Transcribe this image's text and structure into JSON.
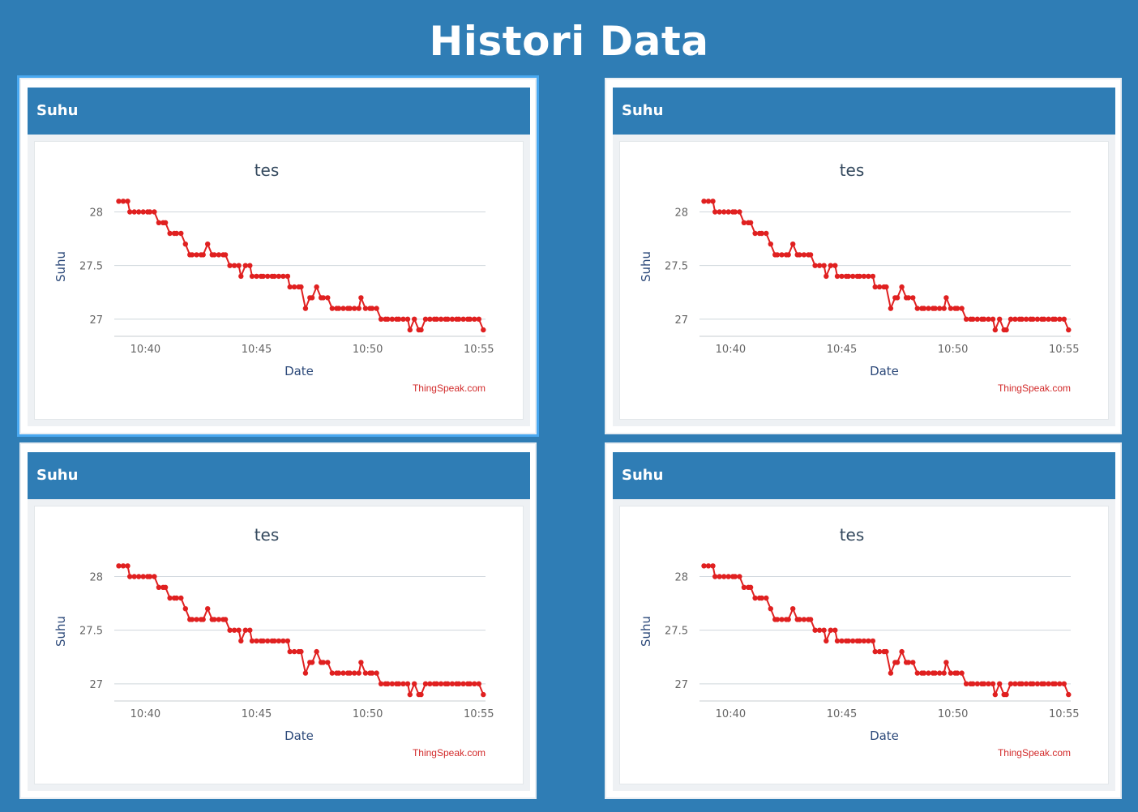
{
  "page": {
    "title": "Histori Data"
  },
  "colors": {
    "background": "#2f7db5",
    "header": "#2f7db5",
    "series": "#e02020",
    "grid": "#cfd6dc"
  },
  "cards": [
    {
      "header": "Suhu"
    },
    {
      "header": "Suhu"
    },
    {
      "header": "Suhu"
    },
    {
      "header": "Suhu"
    }
  ],
  "chart_data": {
    "type": "line",
    "title": "tes",
    "xlabel": "Date",
    "ylabel": "Suhu",
    "credit": "ThingSpeak.com",
    "xlim": [
      38.6,
      55.3
    ],
    "ylim": [
      26.84,
      28.14
    ],
    "x_ticks": [
      40,
      45,
      50,
      55
    ],
    "x_tick_labels": [
      "10:40",
      "10:45",
      "10:50",
      "10:55"
    ],
    "y_ticks": [
      27,
      27.5,
      28
    ],
    "y_tick_labels": [
      "27",
      "27.5",
      "28"
    ],
    "grid": true,
    "series": [
      {
        "x": [
          38.8,
          39.0,
          39.2,
          39.3,
          39.5,
          39.7,
          39.9,
          40.1,
          40.2,
          40.4,
          40.6,
          40.8,
          40.9,
          41.1,
          41.3,
          41.4,
          41.6,
          41.8,
          42.0,
          42.1,
          42.3,
          42.5,
          42.6,
          42.8,
          43.0,
          43.1,
          43.3,
          43.5,
          43.6,
          43.8,
          44.0,
          44.2,
          44.3,
          44.5,
          44.7,
          44.8,
          45.0,
          45.2,
          45.3,
          45.5,
          45.7,
          45.8,
          46.0,
          46.2,
          46.4,
          46.5,
          46.7,
          46.9,
          47.0,
          47.2,
          47.4,
          47.5,
          47.7,
          47.9,
          48.0,
          48.2,
          48.4,
          48.6,
          48.7,
          48.9,
          49.1,
          49.2,
          49.4,
          49.6,
          49.7,
          49.9,
          50.1,
          50.2,
          50.4,
          50.6,
          50.8,
          50.9,
          51.1,
          51.3,
          51.4,
          51.6,
          51.8,
          51.9,
          52.1,
          52.3,
          52.4,
          52.6,
          52.8,
          53.0,
          53.1,
          53.3,
          53.5,
          53.6,
          53.8,
          54.0,
          54.1,
          54.3,
          54.5,
          54.6,
          54.8,
          55.0,
          55.2
        ],
        "y": [
          28.1,
          28.1,
          28.1,
          28.0,
          28.0,
          28.0,
          28.0,
          28.0,
          28.0,
          28.0,
          27.9,
          27.9,
          27.9,
          27.8,
          27.8,
          27.8,
          27.8,
          27.7,
          27.6,
          27.6,
          27.6,
          27.6,
          27.6,
          27.7,
          27.6,
          27.6,
          27.6,
          27.6,
          27.6,
          27.5,
          27.5,
          27.5,
          27.4,
          27.5,
          27.5,
          27.4,
          27.4,
          27.4,
          27.4,
          27.4,
          27.4,
          27.4,
          27.4,
          27.4,
          27.4,
          27.3,
          27.3,
          27.3,
          27.3,
          27.1,
          27.2,
          27.2,
          27.3,
          27.2,
          27.2,
          27.2,
          27.1,
          27.1,
          27.1,
          27.1,
          27.1,
          27.1,
          27.1,
          27.1,
          27.2,
          27.1,
          27.1,
          27.1,
          27.1,
          27.0,
          27.0,
          27.0,
          27.0,
          27.0,
          27.0,
          27.0,
          27.0,
          26.9,
          27.0,
          26.9,
          26.9,
          27.0,
          27.0,
          27.0,
          27.0,
          27.0,
          27.0,
          27.0,
          27.0,
          27.0,
          27.0,
          27.0,
          27.0,
          27.0,
          27.0,
          27.0,
          26.9
        ]
      }
    ]
  }
}
